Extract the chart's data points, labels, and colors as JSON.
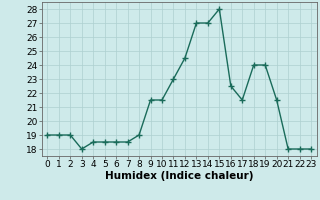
{
  "x": [
    0,
    1,
    2,
    3,
    4,
    5,
    6,
    7,
    8,
    9,
    10,
    11,
    12,
    13,
    14,
    15,
    16,
    17,
    18,
    19,
    20,
    21,
    22,
    23
  ],
  "y": [
    19,
    19,
    19,
    18,
    18.5,
    18.5,
    18.5,
    18.5,
    19,
    21.5,
    21.5,
    23,
    24.5,
    27,
    27,
    28,
    22.5,
    21.5,
    24,
    24,
    21.5,
    18,
    18,
    18
  ],
  "line_color": "#1a6b5a",
  "marker": "+",
  "marker_size": 4,
  "bg_color": "#ceeaea",
  "grid_color": "#aed0d0",
  "xlabel": "Humidex (Indice chaleur)",
  "xlim": [
    -0.5,
    23.5
  ],
  "ylim": [
    17.5,
    28.5
  ],
  "yticks": [
    18,
    19,
    20,
    21,
    22,
    23,
    24,
    25,
    26,
    27,
    28
  ],
  "xticks": [
    0,
    1,
    2,
    3,
    4,
    5,
    6,
    7,
    8,
    9,
    10,
    11,
    12,
    13,
    14,
    15,
    16,
    17,
    18,
    19,
    20,
    21,
    22,
    23
  ],
  "tick_fontsize": 6.5,
  "xlabel_fontsize": 7.5,
  "linewidth": 1.0
}
